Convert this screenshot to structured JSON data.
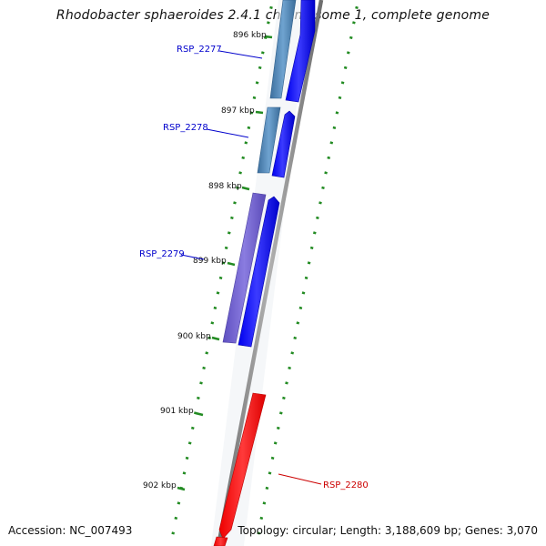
{
  "title": "Rhodobacter sphaeroides 2.4.1 chromosome 1, complete genome",
  "footer": {
    "accession": "Accession: NC_007493",
    "topology": "Topology: circular; Length: 3,188,609 bp; Genes: 3,070"
  },
  "colors": {
    "forward_gene": "#0000ee",
    "reverse_gene": "#ff0000",
    "cds_steel": "#4682b4",
    "cds_purple": "#6a5acd",
    "backbone": "#808080",
    "tick": "#228b22",
    "forward_label": "#0000cc",
    "reverse_label": "#cc0000"
  },
  "ticks": [
    "896 kbp",
    "897 kbp",
    "898 kbp",
    "899 kbp",
    "900 kbp",
    "901 kbp",
    "902 kbp"
  ],
  "genes": [
    {
      "name": "RSP_2277",
      "strand": "forward"
    },
    {
      "name": "RSP_2278",
      "strand": "forward"
    },
    {
      "name": "RSP_2279",
      "strand": "forward"
    },
    {
      "name": "RSP_2280",
      "strand": "reverse"
    }
  ]
}
